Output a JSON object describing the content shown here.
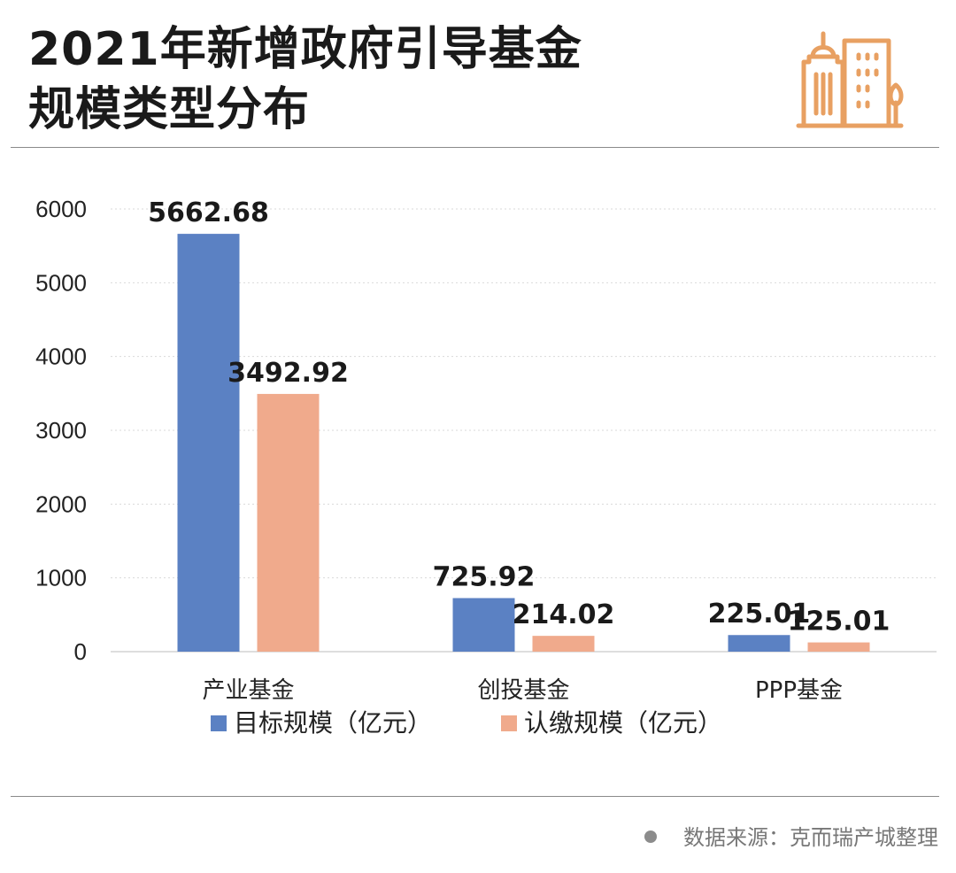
{
  "header": {
    "title_line1": "2021年新增政府引导基金",
    "title_line2": "规模类型分布",
    "logo_icon": "city-buildings-icon",
    "accent_color": "#e8a062"
  },
  "chart_data": {
    "type": "bar",
    "title": "2021年新增政府引导基金规模类型分布",
    "categories": [
      "产业基金",
      "创投基金",
      "PPP基金"
    ],
    "series": [
      {
        "name": "目标规模（亿元）",
        "color": "#5b81c3",
        "values": [
          5662.68,
          725.92,
          225.01
        ],
        "labels": [
          "5662.68",
          "725.92",
          "225.01"
        ]
      },
      {
        "name": "认缴规模（亿元）",
        "color": "#f0aa8c",
        "values": [
          3492.92,
          214.02,
          125.01
        ],
        "labels": [
          "3492.92",
          "214.02",
          "125.01"
        ]
      }
    ],
    "ylim": [
      0,
      6000
    ],
    "yticks": [
      0,
      1000,
      2000,
      3000,
      4000,
      5000,
      6000
    ],
    "grid": true,
    "legend_position": "bottom",
    "xlabel": "",
    "ylabel": ""
  },
  "footer": {
    "source": "数据来源：克而瑞产城整理"
  }
}
